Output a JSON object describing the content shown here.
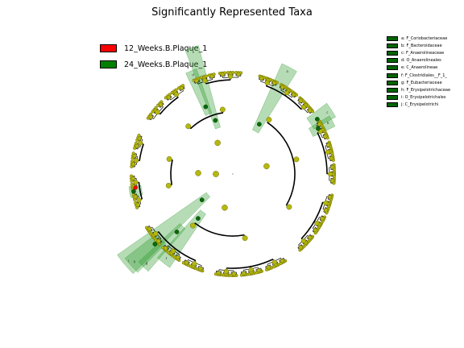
{
  "title": "Significantly Represented Taxa",
  "groups": [
    {
      "label": "12_Weeks.B.Plaque_1",
      "color": "#ff0000"
    },
    {
      "label": "24_Weeks.B.Plaque_1",
      "color": "#008000"
    }
  ],
  "taxa_legend": [
    "a: F_Coriobacteriaceae",
    "b: F_Bacteroidaceae",
    "c: F_Anaerolineaceae",
    "d: O_Anaerolineales",
    "e: C_Anaerolineae",
    "f: F_Clostridiales__F_1_",
    "g: F_Eubacteriaceae",
    "h: F_Erysipelotrichaceae",
    "i: O_Erysipelotrichales",
    "j: C_Erysipelotrichi"
  ],
  "clade_labels": [
    "a",
    "b",
    "c",
    "d",
    "e",
    "f",
    "g",
    "h",
    "i",
    "j"
  ],
  "colors": {
    "node_fill": "#b5b80f",
    "node_stroke": "#6b6b00",
    "enriched_node": "#0a6a0a",
    "red_node": "#ff0000",
    "highlight": "#2e9a2e",
    "edge": "#000000"
  }
}
